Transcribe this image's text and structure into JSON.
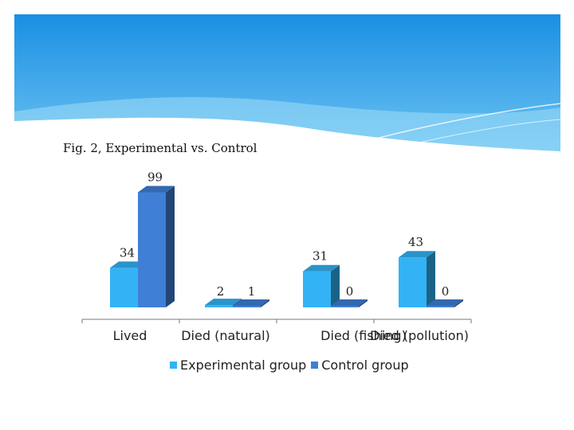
{
  "colors": {
    "experimental": "#33b3f5",
    "control": "#3f7fd6",
    "header_dark": "#1a8fe3",
    "header_light": "#8fd4f7"
  },
  "chart_data": {
    "type": "bar",
    "title": "Fig. 2, Experimental vs. Control",
    "xlabel": "",
    "ylabel": "",
    "categories": [
      "Lived",
      "Died (natural)",
      "Died (fishing)",
      "Died (pollution)"
    ],
    "series": [
      {
        "name": "Experimental group",
        "values": [
          34,
          2,
          31,
          43
        ]
      },
      {
        "name": "Control group",
        "values": [
          99,
          1,
          0,
          0
        ]
      }
    ],
    "value_labels": [
      [
        "34",
        "2",
        "31",
        "43"
      ],
      [
        "99",
        "1",
        "0",
        "0"
      ]
    ],
    "ylim": [
      0,
      100
    ],
    "grid": false,
    "legend_position": "bottom",
    "style": "3d"
  }
}
